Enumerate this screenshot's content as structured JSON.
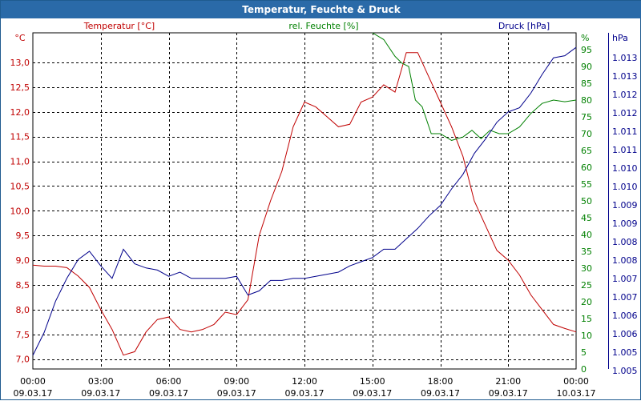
{
  "window": {
    "title": "Temperatur, Feuchte & Druck"
  },
  "chart_data": {
    "type": "line",
    "title": "Temperatur, Feuchte & Druck",
    "x_tick_labels": [
      {
        "time": "00:00",
        "date": "09.03.17"
      },
      {
        "time": "03:00",
        "date": "09.03.17"
      },
      {
        "time": "06:00",
        "date": "09.03.17"
      },
      {
        "time": "09:00",
        "date": "09.03.17"
      },
      {
        "time": "12:00",
        "date": "09.03.17"
      },
      {
        "time": "15:00",
        "date": "09.03.17"
      },
      {
        "time": "18:00",
        "date": "09.03.17"
      },
      {
        "time": "21:00",
        "date": "09.03.17"
      },
      {
        "time": "00:00",
        "date": "10.03.17"
      }
    ],
    "xlim": [
      "09.03.17 00:00",
      "10.03.17 00:00"
    ],
    "grid": true,
    "axes": {
      "temperature": {
        "label": "Temperatur [°C]",
        "unit": "°C",
        "side": "left",
        "color": "#c00000",
        "ylim": [
          6.8,
          13.6
        ],
        "ticks": [
          "13,0",
          "12,5",
          "12,0",
          "11,5",
          "11,0",
          "10,5",
          "10,0",
          "9,5",
          "9,0",
          "8,5",
          "8,0",
          "7,5",
          "7,0"
        ]
      },
      "humidity": {
        "label": "rel. Feuchte [%]",
        "unit": "%",
        "side": "right-inner",
        "color": "#008000",
        "ylim": [
          0,
          100
        ],
        "ticks": [
          "95",
          "90",
          "85",
          "80",
          "75",
          "70",
          "65",
          "60",
          "55",
          "50",
          "45",
          "40",
          "35",
          "30",
          "25",
          "20",
          "15",
          "10",
          "5",
          "0"
        ]
      },
      "pressure": {
        "label": "Druck [hPa]",
        "unit": "hPa",
        "side": "right-outer",
        "color": "#00008b",
        "ticks": [
          "1.013",
          "1.013",
          "1.012",
          "1.012",
          "1.011",
          "1.011",
          "1.010",
          "1.010",
          "1.009",
          "1.009",
          "1.008",
          "1.008",
          "1.007",
          "1.007",
          "1.006",
          "1.006",
          "1.005",
          "1.005"
        ]
      }
    },
    "series": [
      {
        "name": "Temperatur [°C]",
        "axis": "temperature",
        "color": "#c00000",
        "x_hours": [
          0,
          0.5,
          1,
          1.5,
          2,
          2.5,
          3,
          3.5,
          4,
          4.5,
          5,
          5.5,
          6,
          6.5,
          7,
          7.5,
          8,
          8.5,
          9,
          9.5,
          10,
          10.5,
          11,
          11.5,
          12,
          12.5,
          13,
          13.5,
          14,
          14.5,
          15,
          15.5,
          16,
          16.5,
          17,
          17.5,
          18,
          18.5,
          19,
          19.5,
          20,
          20.5,
          21,
          21.5,
          22,
          22.5,
          23,
          23.5,
          24
        ],
        "values": [
          8.9,
          8.88,
          8.88,
          8.85,
          8.68,
          8.45,
          8.0,
          7.6,
          7.08,
          7.15,
          7.55,
          7.8,
          7.85,
          7.6,
          7.55,
          7.6,
          7.7,
          7.95,
          7.9,
          8.2,
          9.5,
          10.2,
          10.8,
          11.7,
          12.2,
          12.1,
          11.9,
          11.7,
          11.75,
          12.2,
          12.3,
          12.55,
          12.4,
          13.2,
          13.2,
          12.7,
          12.2,
          11.7,
          11.1,
          10.2,
          9.7,
          9.2,
          9.0,
          8.7,
          8.3,
          8.0,
          7.7,
          7.62,
          7.55
        ]
      },
      {
        "name": "rel. Feuchte [%]",
        "axis": "humidity",
        "color": "#008000",
        "x_hours": [
          15,
          15.5,
          16,
          16.3,
          16.6,
          16.9,
          17.2,
          17.6,
          18.0,
          18.5,
          19.0,
          19.4,
          19.8,
          20.2,
          20.6,
          21.0,
          21.5,
          22.0,
          22.5,
          23.0,
          23.5,
          24
        ],
        "values": [
          100,
          98,
          93,
          91,
          90,
          80,
          78,
          70,
          70,
          68,
          69,
          71,
          68.5,
          71,
          70,
          70,
          72,
          76,
          79,
          80,
          79.5,
          80
        ]
      },
      {
        "name": "Druck [hPa]",
        "axis": "pressure",
        "color": "#00008b",
        "x_hours": [
          0,
          0.5,
          1,
          1.5,
          2,
          2.5,
          3,
          3.5,
          4,
          4.5,
          5,
          5.5,
          6,
          6.5,
          7,
          7.5,
          8,
          8.5,
          9,
          9.5,
          10,
          10.5,
          11,
          11.5,
          12,
          12.5,
          13,
          13.5,
          14,
          14.5,
          15,
          15.5,
          16,
          16.5,
          17,
          17.5,
          18,
          18.5,
          19,
          19.5,
          20,
          20.5,
          21,
          21.5,
          22,
          22.5,
          23,
          23.5,
          24
        ],
        "values": [
          0,
          0.11,
          0.26,
          0.37,
          0.46,
          0.5,
          0.43,
          0.37,
          0.51,
          0.44,
          0.42,
          0.41,
          0.38,
          0.4,
          0.37,
          0.37,
          0.37,
          0.37,
          0.38,
          0.29,
          0.31,
          0.36,
          0.36,
          0.37,
          0.37,
          0.38,
          0.39,
          0.4,
          0.43,
          0.45,
          0.47,
          0.51,
          0.51,
          0.56,
          0.61,
          0.67,
          0.72,
          0.8,
          0.87,
          0.97,
          1.04,
          1.12,
          1.17,
          1.19,
          1.26,
          1.35,
          1.43,
          1.44,
          1.48
        ]
      }
    ]
  }
}
